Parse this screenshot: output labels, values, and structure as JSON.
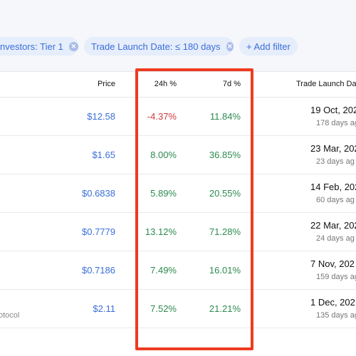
{
  "filters": {
    "chips": [
      {
        "label": "nvestors: Tier 1"
      },
      {
        "label": "Trade Launch Date: ≤ 180 days"
      }
    ],
    "add_label": "+ Add filter"
  },
  "table": {
    "columns": {
      "price": "Price",
      "change_24h": "24h %",
      "change_7d": "7d %",
      "launch_date": "Trade Launch Dat"
    },
    "rows": [
      {
        "price": "$12.58",
        "change_24h": "-4.37%",
        "change_7d": "11.84%",
        "date": "19 Oct, 202",
        "ago": "178 days ag",
        "sub": ""
      },
      {
        "price": "$1.65",
        "change_24h": "8.00%",
        "change_7d": "36.85%",
        "date": "23 Mar, 202",
        "ago": "23 days ag",
        "sub": ""
      },
      {
        "price": "$0.6838",
        "change_24h": "5.89%",
        "change_7d": "20.55%",
        "date": "14 Feb, 202",
        "ago": "60 days ag",
        "sub": ""
      },
      {
        "price": "$0.7779",
        "change_24h": "13.12%",
        "change_7d": "71.28%",
        "date": "22 Mar, 202",
        "ago": "24 days ag",
        "sub": ""
      },
      {
        "price": "$0.7186",
        "change_24h": "7.49%",
        "change_7d": "16.01%",
        "date": "7 Nov, 202",
        "ago": "159 days ag",
        "sub": ""
      },
      {
        "price": "$2.11",
        "change_24h": "7.52%",
        "change_7d": "21.21%",
        "date": "1 Dec, 202",
        "ago": "135 days ag",
        "sub": "otocol"
      }
    ]
  },
  "colors": {
    "accent": "#3b6fd8",
    "positive": "#2d8a4e",
    "negative": "#d23b3b",
    "highlight_box": "#ee3b1f"
  },
  "icons": {
    "chip_remove": "close-circle-icon"
  }
}
